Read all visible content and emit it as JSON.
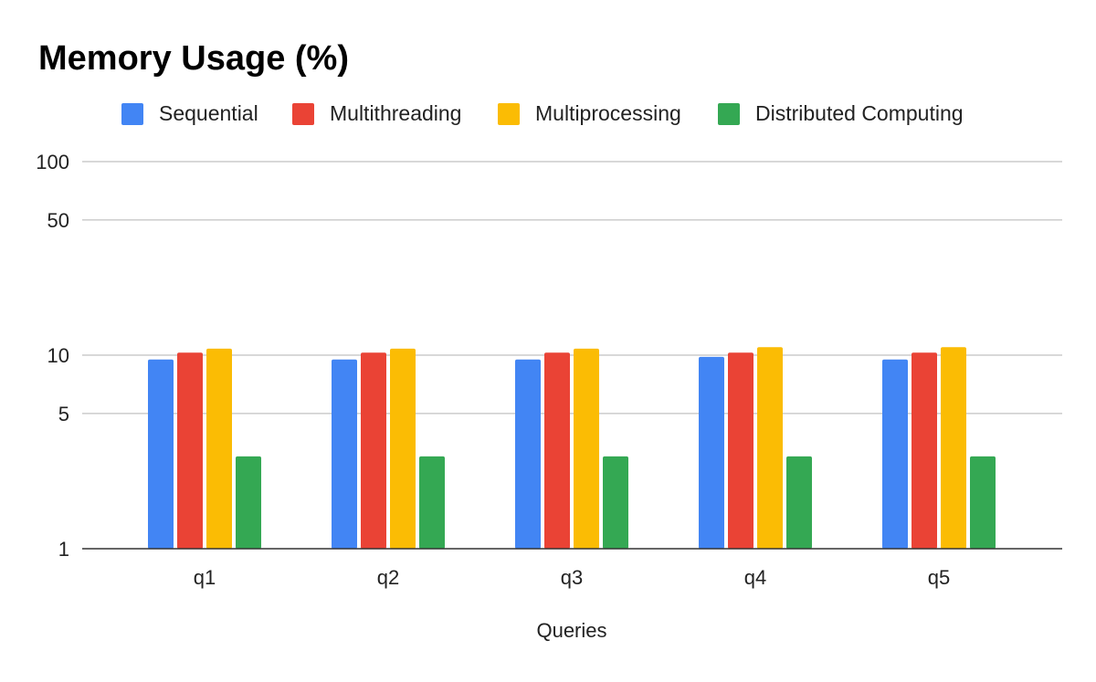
{
  "chart_data": {
    "type": "bar",
    "title": "Memory Usage (%)",
    "xlabel": "Queries",
    "ylabel": "",
    "yscale": "log",
    "ylim": [
      1,
      100
    ],
    "yticks": [
      "1",
      "5",
      "10",
      "50",
      "100"
    ],
    "ytick_values": [
      1,
      5,
      10,
      50,
      100
    ],
    "grid": true,
    "legend_position": "top",
    "categories": [
      "q1",
      "q2",
      "q3",
      "q4",
      "q5"
    ],
    "series": [
      {
        "name": "Sequential",
        "color": "#4285F4",
        "values": [
          9.5,
          9.5,
          9.5,
          9.8,
          9.5
        ]
      },
      {
        "name": "Multithreading",
        "color": "#EA4335",
        "values": [
          10.3,
          10.3,
          10.3,
          10.3,
          10.3
        ]
      },
      {
        "name": "Multiprocessing",
        "color": "#FBBC04",
        "values": [
          10.8,
          10.8,
          10.8,
          11.0,
          11.0
        ]
      },
      {
        "name": "Distributed Computing",
        "color": "#34A853",
        "values": [
          3.0,
          3.0,
          3.0,
          3.0,
          3.0
        ]
      }
    ]
  }
}
